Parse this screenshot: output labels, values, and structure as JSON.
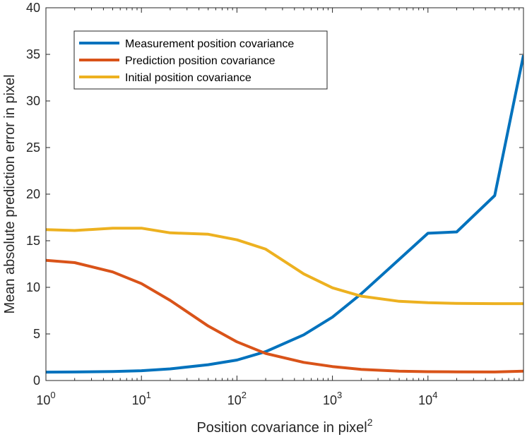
{
  "chart_data": {
    "type": "line",
    "xlabel": "Position covariance in pixel",
    "xlabel_superscript": "2",
    "ylabel": "Mean absolute prediction error in pixel",
    "xscale": "log",
    "xlim": [
      1,
      100000
    ],
    "ylim": [
      0,
      40
    ],
    "grid": false,
    "legend_position": "top-left",
    "x_ticks": [
      {
        "value": 1,
        "base": "10",
        "exp": "0"
      },
      {
        "value": 10,
        "base": "10",
        "exp": "1"
      },
      {
        "value": 100,
        "base": "10",
        "exp": "2"
      },
      {
        "value": 1000,
        "base": "10",
        "exp": "3"
      },
      {
        "value": 10000,
        "base": "10",
        "exp": "4"
      }
    ],
    "y_ticks": [
      {
        "value": 0,
        "label": "0"
      },
      {
        "value": 5,
        "label": "5"
      },
      {
        "value": 10,
        "label": "10"
      },
      {
        "value": 15,
        "label": "15"
      },
      {
        "value": 20,
        "label": "20"
      },
      {
        "value": 25,
        "label": "25"
      },
      {
        "value": 30,
        "label": "30"
      },
      {
        "value": 35,
        "label": "35"
      },
      {
        "value": 40,
        "label": "40"
      }
    ],
    "x": [
      1,
      2,
      5,
      10,
      20,
      50,
      100,
      200,
      500,
      1000,
      2000,
      5000,
      10000,
      20000,
      50000,
      100000
    ],
    "series": [
      {
        "name": "Measurement position covariance",
        "color": "#0072BD",
        "values": [
          0.9,
          0.92,
          0.97,
          1.05,
          1.25,
          1.7,
          2.2,
          3.1,
          4.9,
          6.8,
          9.3,
          13.0,
          15.8,
          15.95,
          19.85,
          34.9
        ]
      },
      {
        "name": "Prediction position covariance",
        "color": "#D95319",
        "values": [
          12.9,
          12.65,
          11.65,
          10.4,
          8.6,
          5.85,
          4.15,
          2.9,
          1.95,
          1.5,
          1.2,
          1.0,
          0.95,
          0.93,
          0.92,
          1.0
        ]
      },
      {
        "name": "Initial position covariance",
        "color": "#EDB120",
        "values": [
          16.2,
          16.1,
          16.35,
          16.35,
          15.85,
          15.7,
          15.1,
          14.1,
          11.45,
          9.95,
          9.05,
          8.5,
          8.35,
          8.28,
          8.25,
          8.25
        ]
      }
    ]
  }
}
